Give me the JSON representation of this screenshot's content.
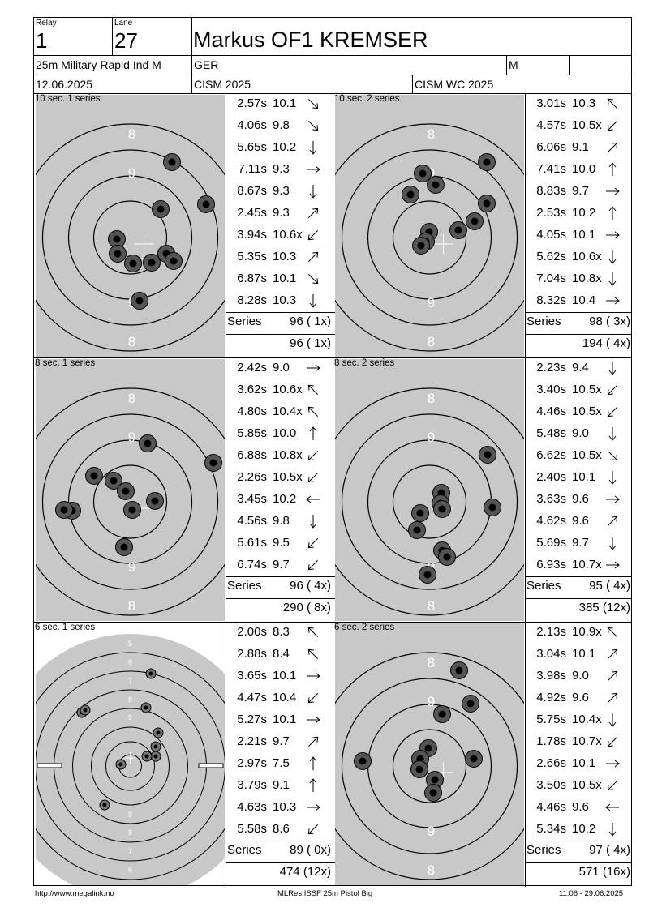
{
  "header": {
    "relay_label": "Relay",
    "relay": "1",
    "lane_label": "Lane",
    "lane": "27",
    "name": "Markus OF1 KREMSER",
    "event": "25m Military Rapid Ind M",
    "nation": "GER",
    "gender": "M",
    "date": "12.06.2025",
    "competition": "CISM 2025",
    "championship": "CISM WC 2025"
  },
  "series_label": "Series",
  "series": [
    {
      "title": "10 sec. 1 series",
      "target": "grey",
      "shots": [
        {
          "time": "2.57s",
          "value": "10.1",
          "dir": "se"
        },
        {
          "time": "4.06s",
          "value": "9.8",
          "dir": "se"
        },
        {
          "time": "5.65s",
          "value": "10.2",
          "dir": "s"
        },
        {
          "time": "7.11s",
          "value": "9.3",
          "dir": "e"
        },
        {
          "time": "8.67s",
          "value": "9.3",
          "dir": "s"
        },
        {
          "time": "2.45s",
          "value": "9.3",
          "dir": "ne"
        },
        {
          "time": "3.94s",
          "value": "10.6x",
          "dir": "sw"
        },
        {
          "time": "5.35s",
          "value": "10.3",
          "dir": "ne"
        },
        {
          "time": "6.87s",
          "value": "10.1",
          "dir": "se"
        },
        {
          "time": "8.28s",
          "value": "10.3",
          "dir": "s"
        }
      ],
      "series_score": "96 ( 1x)",
      "total": "96 ( 1x)"
    },
    {
      "title": "10 sec. 2 series",
      "target": "grey",
      "shots": [
        {
          "time": "3.01s",
          "value": "10.3",
          "dir": "nw"
        },
        {
          "time": "4.57s",
          "value": "10.5x",
          "dir": "sw"
        },
        {
          "time": "6.06s",
          "value": "9.1",
          "dir": "ne"
        },
        {
          "time": "7.41s",
          "value": "10.0",
          "dir": "n"
        },
        {
          "time": "8.83s",
          "value": "9.7",
          "dir": "e"
        },
        {
          "time": "2.53s",
          "value": "10.2",
          "dir": "n"
        },
        {
          "time": "4.05s",
          "value": "10.1",
          "dir": "e"
        },
        {
          "time": "5.62s",
          "value": "10.6x",
          "dir": "s"
        },
        {
          "time": "7.04s",
          "value": "10.8x",
          "dir": "s"
        },
        {
          "time": "8.32s",
          "value": "10.4",
          "dir": "e"
        }
      ],
      "series_score": "98 ( 3x)",
      "total": "194 ( 4x)"
    },
    {
      "title": "8 sec. 1 series",
      "target": "grey",
      "shots": [
        {
          "time": "2.42s",
          "value": "9.0",
          "dir": "e"
        },
        {
          "time": "3.62s",
          "value": "10.6x",
          "dir": "nw"
        },
        {
          "time": "4.80s",
          "value": "10.4x",
          "dir": "nw"
        },
        {
          "time": "5.85s",
          "value": "10.0",
          "dir": "n"
        },
        {
          "time": "6.88s",
          "value": "10.8x",
          "dir": "sw"
        },
        {
          "time": "2.26s",
          "value": "10.5x",
          "dir": "sw"
        },
        {
          "time": "3.45s",
          "value": "10.2",
          "dir": "w"
        },
        {
          "time": "4.56s",
          "value": "9.8",
          "dir": "s"
        },
        {
          "time": "5.61s",
          "value": "9.5",
          "dir": "sw"
        },
        {
          "time": "6.74s",
          "value": "9.7",
          "dir": "sw"
        }
      ],
      "series_score": "96 ( 4x)",
      "total": "290 ( 8x)"
    },
    {
      "title": "8 sec. 2 series",
      "target": "grey",
      "shots": [
        {
          "time": "2.23s",
          "value": "9.4",
          "dir": "s"
        },
        {
          "time": "3.40s",
          "value": "10.5x",
          "dir": "sw"
        },
        {
          "time": "4.46s",
          "value": "10.5x",
          "dir": "sw"
        },
        {
          "time": "5.48s",
          "value": "9.0",
          "dir": "s"
        },
        {
          "time": "6.62s",
          "value": "10.5x",
          "dir": "se"
        },
        {
          "time": "2.40s",
          "value": "10.1",
          "dir": "s"
        },
        {
          "time": "3.63s",
          "value": "9.6",
          "dir": "e"
        },
        {
          "time": "4.62s",
          "value": "9.6",
          "dir": "ne"
        },
        {
          "time": "5.69s",
          "value": "9.7",
          "dir": "s"
        },
        {
          "time": "6.93s",
          "value": "10.7x",
          "dir": "e"
        }
      ],
      "series_score": "95 ( 4x)",
      "total": "385 (12x)"
    },
    {
      "title": "6 sec. 1 series",
      "target": "precision",
      "shots": [
        {
          "time": "2.00s",
          "value": "8.3",
          "dir": "nw"
        },
        {
          "time": "2.88s",
          "value": "8.4",
          "dir": "nw"
        },
        {
          "time": "3.65s",
          "value": "10.1",
          "dir": "e"
        },
        {
          "time": "4.47s",
          "value": "10.4",
          "dir": "sw"
        },
        {
          "time": "5.27s",
          "value": "10.1",
          "dir": "e"
        },
        {
          "time": "2.21s",
          "value": "9.7",
          "dir": "ne"
        },
        {
          "time": "2.97s",
          "value": "7.5",
          "dir": "n"
        },
        {
          "time": "3.79s",
          "value": "9.1",
          "dir": "n"
        },
        {
          "time": "4.63s",
          "value": "10.3",
          "dir": "e"
        },
        {
          "time": "5.58s",
          "value": "8.6",
          "dir": "sw"
        }
      ],
      "series_score": "89 ( 0x)",
      "total": "474 (12x)"
    },
    {
      "title": "6 sec. 2 series",
      "target": "grey",
      "shots": [
        {
          "time": "2.13s",
          "value": "10.9x",
          "dir": "nw"
        },
        {
          "time": "3.04s",
          "value": "10.1",
          "dir": "ne"
        },
        {
          "time": "3.98s",
          "value": "9.0",
          "dir": "ne"
        },
        {
          "time": "4.92s",
          "value": "9.6",
          "dir": "ne"
        },
        {
          "time": "5.75s",
          "value": "10.4x",
          "dir": "s"
        },
        {
          "time": "1.78s",
          "value": "10.7x",
          "dir": "sw"
        },
        {
          "time": "2.66s",
          "value": "10.1",
          "dir": "e"
        },
        {
          "time": "3.50s",
          "value": "10.5x",
          "dir": "sw"
        },
        {
          "time": "4.46s",
          "value": "9.6",
          "dir": "w"
        },
        {
          "time": "5.34s",
          "value": "10.2",
          "dir": "s"
        }
      ],
      "series_score": "97 ( 4x)",
      "total": "571 (16x)"
    }
  ],
  "ring_labels": {
    "grey": [
      "8",
      "9"
    ],
    "precision": [
      "5",
      "6",
      "7",
      "8",
      "9"
    ]
  },
  "footer": {
    "url": "http://www.megalink.no",
    "program": "MLRes ISSF 25m Pistol Big",
    "timestamp": "11:06 - 29.06.2025"
  },
  "colors": {
    "target_background": "#c8c8c8",
    "ring": "#000000",
    "shot_fill": "#555555",
    "shot_center": "#000000"
  }
}
